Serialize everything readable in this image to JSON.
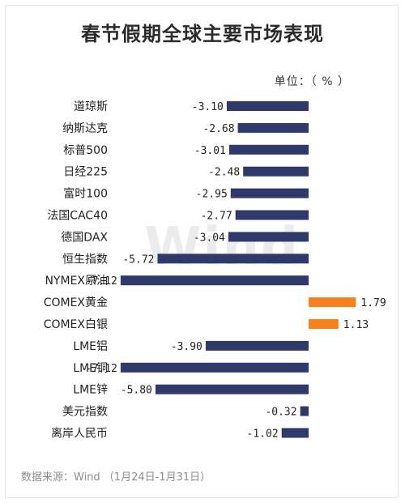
{
  "title": "春节假期全球主要市场表现",
  "unit_label": "单位：（ % ）",
  "source": "数据来源：Wind  （1月24日-1月31日）",
  "watermark": "Wind",
  "colors": {
    "negative": "#2f3a6b",
    "positive": "#f5821f"
  },
  "chart_data": {
    "type": "bar",
    "orientation": "horizontal",
    "categories": [
      "道琼斯",
      "纳斯达克",
      "标普500",
      "日经225",
      "富时100",
      "法国CAC40",
      "德国DAX",
      "恒生指数",
      "NYMEX原油",
      "COMEX黄金",
      "COMEX白银",
      "LME铝",
      "LME铜",
      "LME锌",
      "美元指数",
      "离岸人民币"
    ],
    "values": [
      -3.1,
      -2.68,
      -3.01,
      -2.48,
      -2.95,
      -2.77,
      -3.04,
      -5.72,
      -7.12,
      1.79,
      1.13,
      -3.9,
      -7.12,
      -5.8,
      -0.32,
      -1.02
    ],
    "value_labels": [
      "-3.10",
      "-2.68",
      "-3.01",
      "-2.48",
      "-2.95",
      "-2.77",
      "-3.04",
      "-5.72",
      "-7.12",
      "1.79",
      "1.13",
      "-3.90",
      "-7.12",
      "-5.80",
      "-0.32",
      "-1.02"
    ],
    "title": "春节假期全球主要市场表现",
    "xlabel": "",
    "ylabel": "",
    "grid": false
  }
}
